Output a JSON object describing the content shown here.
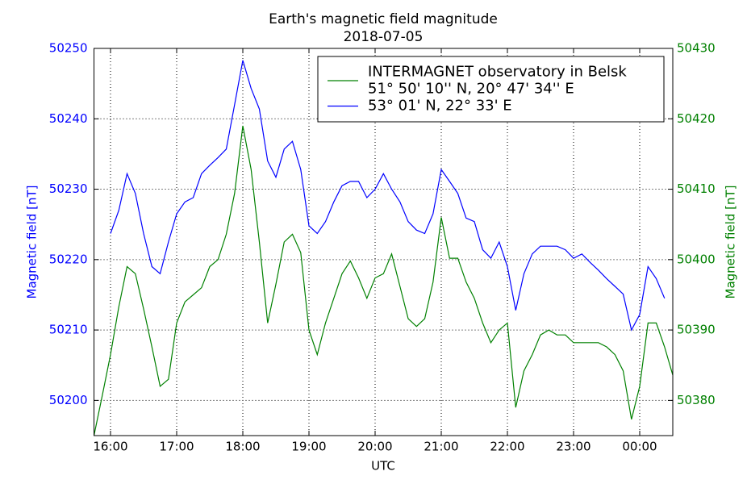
{
  "chart_data": {
    "type": "line",
    "title": "Earth's magnetic field magnitude",
    "subtitle": "2018-07-05",
    "xlabel": "UTC",
    "ylabel": "Magnetic field [nT]",
    "y2label": "Magnetic field [nT]",
    "x": [
      15.75,
      15.875,
      16,
      16.125,
      16.25,
      16.375,
      16.5,
      16.625,
      16.75,
      16.875,
      17,
      17.125,
      17.25,
      17.375,
      17.5,
      17.625,
      17.75,
      17.875,
      18,
      18.125,
      18.25,
      18.375,
      18.5,
      18.625,
      18.75,
      18.875,
      19,
      19.125,
      19.25,
      19.375,
      19.5,
      19.625,
      19.75,
      19.875,
      20,
      20.125,
      20.25,
      20.375,
      20.5,
      20.625,
      20.75,
      20.875,
      21,
      21.125,
      21.25,
      21.375,
      21.5,
      21.625,
      21.75,
      21.875,
      22,
      22.125,
      22.25,
      22.375,
      22.5,
      22.625,
      22.75,
      22.875,
      23,
      23.125,
      23.25,
      23.375,
      23.5,
      23.625,
      23.75,
      23.875,
      24,
      24.125,
      24.25,
      24.375,
      24.5
    ],
    "xlim": [
      15.75,
      24.5
    ],
    "xticks": [
      {
        "value": 16,
        "label": "16:00"
      },
      {
        "value": 17,
        "label": "17:00"
      },
      {
        "value": 18,
        "label": "18:00"
      },
      {
        "value": 19,
        "label": "19:00"
      },
      {
        "value": 20,
        "label": "20:00"
      },
      {
        "value": 21,
        "label": "21:00"
      },
      {
        "value": 22,
        "label": "22:00"
      },
      {
        "value": 23,
        "label": "23:00"
      },
      {
        "value": 24,
        "label": "00:00"
      }
    ],
    "ylim": [
      50195,
      50250
    ],
    "yticks": [
      50200,
      50210,
      50220,
      50230,
      50240,
      50250
    ],
    "y2lim": [
      50375,
      50430
    ],
    "y2ticks": [
      50380,
      50390,
      50400,
      50410,
      50420,
      50430
    ],
    "grid": true,
    "legend": "upper right",
    "series": [
      {
        "name": "INTERMAGNET observatory in Belsk\n51° 50' 10'' N, 20° 47' 34'' E",
        "color": "#008000",
        "axis": "y2",
        "values": [
          50375,
          50380.7,
          50386.5,
          50393.3,
          50399,
          50398,
          50393,
          50387.6,
          50382,
          50383,
          50391,
          50394,
          50395,
          50396,
          50399,
          50400,
          50403.6,
          50409.4,
          50419,
          50412.8,
          50402.5,
          50391,
          50396.5,
          50402.5,
          50403.6,
          50401,
          50390,
          50386.5,
          50391,
          50394.5,
          50398,
          50399.8,
          50397.4,
          50394.5,
          50397.4,
          50398,
          50400.8,
          50396.2,
          50391.6,
          50390.5,
          50391.6,
          50396.8,
          50406,
          50400.2,
          50400.2,
          50396.8,
          50394.5,
          50391,
          50388.2,
          50390,
          50391,
          50379,
          50384.2,
          50386.5,
          50389.3,
          50390,
          50389.3,
          50389.3,
          50388.2,
          50388.2,
          50388.2,
          50388.2,
          50387.6,
          50386.5,
          50384.2,
          50377.3,
          50382,
          50391,
          50391,
          50387.6,
          50383.6
        ]
      },
      {
        "name": "53° 01' N, 22° 33' E",
        "color": "#0000ff",
        "values": [
          null,
          null,
          50223.7,
          50227,
          50232.2,
          50229.4,
          50223.7,
          50219,
          50218,
          50222.5,
          50226.5,
          50228.2,
          50228.8,
          50232.2,
          50233.4,
          50234.5,
          50235.7,
          50242,
          50248.3,
          50244.3,
          50241.4,
          50234,
          50231.7,
          50235.7,
          50236.8,
          50232.8,
          50224.8,
          50223.7,
          50225.4,
          50228.2,
          50230.5,
          50231.1,
          50231.1,
          50228.8,
          50230,
          50232.2,
          50230,
          50228.2,
          50225.4,
          50224.2,
          50223.7,
          50226.5,
          50232.8,
          50231.1,
          50229.4,
          50225.9,
          50225.4,
          50221.4,
          50220.2,
          50222.5,
          50219,
          50212.8,
          50218,
          50220.8,
          50221.9,
          50221.9,
          50221.9,
          50221.4,
          50220.2,
          50220.8,
          50219.6,
          50218.5,
          50217.3,
          50216.2,
          50215.1,
          50210,
          50212.2,
          50219,
          50217.3,
          50214.5,
          null
        ]
      }
    ]
  }
}
